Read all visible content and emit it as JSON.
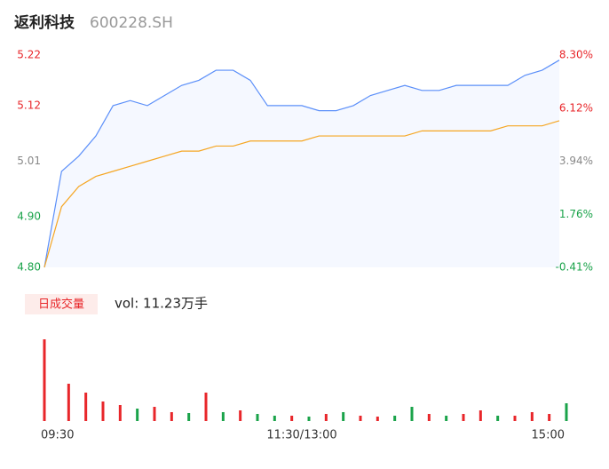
{
  "chart_data": {
    "type": "intraday",
    "title": "返利科技",
    "code": "600228.SH",
    "x": [
      0,
      8,
      16,
      24,
      32,
      40,
      48,
      56,
      64,
      72,
      80,
      88,
      96,
      104,
      112,
      120,
      128,
      136,
      144,
      152,
      160,
      168,
      176,
      184,
      192,
      200,
      208,
      216,
      224,
      232,
      240
    ],
    "xlim": [
      0,
      240
    ],
    "xticks": [
      {
        "value": 0,
        "label": "09:30"
      },
      {
        "value": 120,
        "label": "11:30/13:00"
      },
      {
        "value": 240,
        "label": "15:00"
      }
    ],
    "ylim": [
      4.8,
      5.22
    ],
    "yticks": [
      5.22,
      5.12,
      5.01,
      {
        "value": 4.9,
        "label": "4.90"
      },
      {
        "value": 4.8,
        "label": "4.80"
      }
    ],
    "y2lim": [
      -0.41,
      8.3
    ],
    "y2ticks": [
      {
        "value": 8.3,
        "label": "8.30%"
      },
      {
        "value": 6.12,
        "label": "6.12%"
      },
      {
        "value": 3.94,
        "label": "3.94%"
      },
      {
        "value": 1.76,
        "label": "1.76%"
      },
      {
        "value": -0.41,
        "label": "-0.41%"
      }
    ],
    "ytick_colors": [
      "#e8262a",
      "#e8262a",
      "#888888",
      "#1aa34a",
      "#1aa34a"
    ],
    "series": [
      {
        "name": "price",
        "color": "#5b8ff9",
        "values": [
          4.8,
          4.99,
          5.02,
          5.06,
          5.12,
          5.13,
          5.12,
          5.14,
          5.16,
          5.17,
          5.19,
          5.19,
          5.17,
          5.12,
          5.12,
          5.12,
          5.11,
          5.11,
          5.12,
          5.14,
          5.15,
          5.16,
          5.15,
          5.15,
          5.16,
          5.16,
          5.16,
          5.16,
          5.18,
          5.19,
          5.21
        ]
      },
      {
        "name": "avg",
        "color": "#f5a623",
        "values": [
          4.8,
          4.92,
          4.96,
          4.98,
          4.99,
          5.0,
          5.01,
          5.02,
          5.03,
          5.03,
          5.04,
          5.04,
          5.05,
          5.05,
          5.05,
          5.05,
          5.06,
          5.06,
          5.06,
          5.06,
          5.06,
          5.06,
          5.07,
          5.07,
          5.07,
          5.07,
          5.07,
          5.08,
          5.08,
          5.08,
          5.09
        ]
      }
    ],
    "volume": {
      "label": "日成交量",
      "summary": "vol: 11.23万手",
      "values": [
        92,
        42,
        32,
        22,
        18,
        14,
        16,
        10,
        9,
        32,
        10,
        12,
        8,
        6,
        6,
        5,
        8,
        10,
        6,
        5,
        6,
        16,
        8,
        6,
        8,
        12,
        6,
        6,
        10,
        8,
        20
      ],
      "colors": [
        "#e8262a",
        "#e8262a",
        "#e8262a",
        "#e8262a",
        "#e8262a",
        "#1aa34a",
        "#e8262a",
        "#e8262a",
        "#1aa34a",
        "#e8262a",
        "#1aa34a",
        "#e8262a",
        "#1aa34a",
        "#1aa34a",
        "#e8262a",
        "#1aa34a",
        "#e8262a",
        "#1aa34a",
        "#e8262a",
        "#e8262a",
        "#1aa34a",
        "#1aa34a",
        "#e8262a",
        "#1aa34a",
        "#e8262a",
        "#e8262a",
        "#1aa34a",
        "#e8262a",
        "#e8262a",
        "#e8262a",
        "#1aa34a"
      ]
    }
  }
}
